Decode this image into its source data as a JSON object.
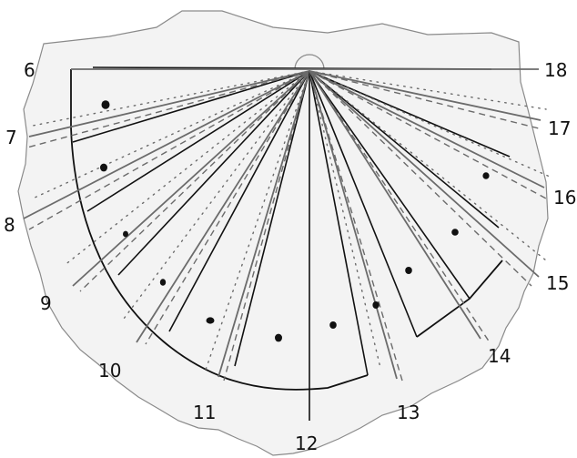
{
  "diagram": {
    "hour_labels": [
      "6",
      "7",
      "8",
      "9",
      "10",
      "11",
      "12",
      "13",
      "14",
      "15",
      "16",
      "17",
      "18"
    ]
  },
  "colors": {
    "stone_fill": "#f3f3f3",
    "stone_edge": "#8a8a8a",
    "ink": "#111111",
    "gray_line": "#6b6b6b"
  }
}
